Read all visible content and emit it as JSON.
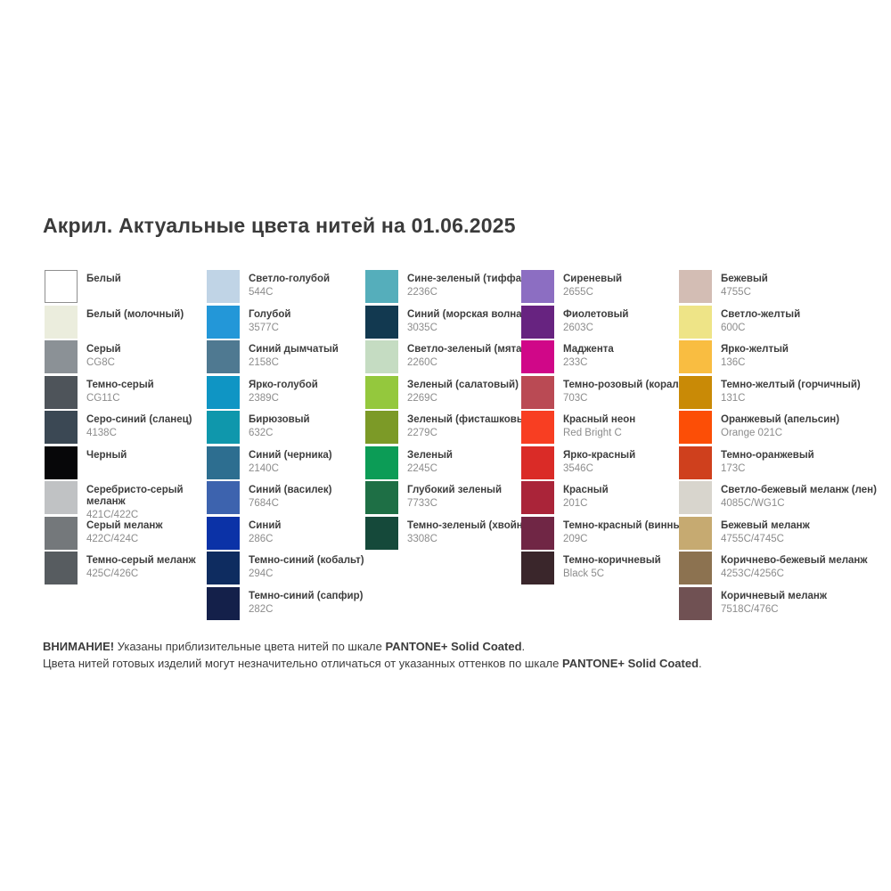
{
  "title": "Акрил. Актуальные цвета нитей на 01.06.2025",
  "columns": [
    {
      "items": [
        {
          "name": "Белый",
          "code": "",
          "color": "#ffffff",
          "border": true
        },
        {
          "name": "Белый (молочный)",
          "code": "",
          "color": "#ebeddd",
          "border": false
        },
        {
          "name": "Серый",
          "code": "CG8C",
          "color": "#8b9196",
          "border": false
        },
        {
          "name": "Темно-серый",
          "code": "CG11C",
          "color": "#4e545a",
          "border": false
        },
        {
          "name": "Серо-синий (сланец)",
          "code": "4138C",
          "color": "#3b4854",
          "border": false
        },
        {
          "name": "Черный",
          "code": "",
          "color": "#070709",
          "border": false
        },
        {
          "name": "Серебристо-серый\nмеланж",
          "code": "421C/422C",
          "color": "#c0c2c4",
          "border": false
        },
        {
          "name": "Серый меланж",
          "code": "422C/424C",
          "color": "#74787b",
          "border": false
        },
        {
          "name": "Темно-серый меланж",
          "code": "425C/426C",
          "color": "#575c60",
          "border": false
        }
      ]
    },
    {
      "items": [
        {
          "name": "Светло-голубой",
          "code": "544C",
          "color": "#c0d4e6",
          "border": false
        },
        {
          "name": "Голубой",
          "code": "3577C",
          "color": "#2397d8",
          "border": false
        },
        {
          "name": "Синий дымчатый",
          "code": "2158C",
          "color": "#4f7991",
          "border": false
        },
        {
          "name": "Ярко-голубой",
          "code": "2389C",
          "color": "#0f95c4",
          "border": false
        },
        {
          "name": "Бирюзовый",
          "code": "632C",
          "color": "#0f97ac",
          "border": false
        },
        {
          "name": "Синий (черника)",
          "code": "2140C",
          "color": "#2d6e90",
          "border": false
        },
        {
          "name": "Синий (василек)",
          "code": "7684C",
          "color": "#3d63ae",
          "border": false
        },
        {
          "name": "Синий",
          "code": "286C",
          "color": "#0b32a7",
          "border": false
        },
        {
          "name": "Темно-синий (кобальт)",
          "code": "294C",
          "color": "#0e2c60",
          "border": false
        },
        {
          "name": "Темно-синий (сапфир)",
          "code": "282C",
          "color": "#14204a",
          "border": false
        }
      ]
    },
    {
      "items": [
        {
          "name": "Сине-зеленый (тиффани)",
          "code": "2236C",
          "color": "#55aebb",
          "border": false
        },
        {
          "name": "Синий (морская волна)",
          "code": "3035C",
          "color": "#123950",
          "border": false
        },
        {
          "name": "Светло-зеленый (мята)",
          "code": "2260C",
          "color": "#c5dcc2",
          "border": false
        },
        {
          "name": "Зеленый (салатовый)",
          "code": "2269C",
          "color": "#94c83d",
          "border": false
        },
        {
          "name": "Зеленый (фисташковый)",
          "code": "2279C",
          "color": "#7c9a27",
          "border": false
        },
        {
          "name": "Зеленый",
          "code": "2245C",
          "color": "#0c9c56",
          "border": false
        },
        {
          "name": "Глубокий зеленый",
          "code": "7733C",
          "color": "#1e6f45",
          "border": false
        },
        {
          "name": "Темно-зеленый (хвойный)",
          "code": "3308C",
          "color": "#15493a",
          "border": false
        }
      ]
    },
    {
      "items": [
        {
          "name": "Сиреневый",
          "code": "2655C",
          "color": "#8c6ec2",
          "border": false
        },
        {
          "name": "Фиолетовый",
          "code": "2603C",
          "color": "#672380",
          "border": false
        },
        {
          "name": "Маджента",
          "code": "233C",
          "color": "#d00788",
          "border": false
        },
        {
          "name": "Темно-розовый (коралл)",
          "code": "703C",
          "color": "#ba4a54",
          "border": false
        },
        {
          "name": "Красный неон",
          "code": "Red Bright C",
          "color": "#f83e22",
          "border": false
        },
        {
          "name": "Ярко-красный",
          "code": "3546C",
          "color": "#da2b27",
          "border": false
        },
        {
          "name": "Красный",
          "code": "201C",
          "color": "#aa2439",
          "border": false
        },
        {
          "name": "Темно-красный (винный)",
          "code": "209C",
          "color": "#702645",
          "border": false
        },
        {
          "name": "Темно-коричневый",
          "code": "Black 5C",
          "color": "#3a262b",
          "border": false
        }
      ]
    },
    {
      "items": [
        {
          "name": "Бежевый",
          "code": "4755C",
          "color": "#d3bdb4",
          "border": false
        },
        {
          "name": "Светло-желтый",
          "code": "600C",
          "color": "#eee487",
          "border": false
        },
        {
          "name": "Ярко-желтый",
          "code": "136C",
          "color": "#f9bd41",
          "border": false
        },
        {
          "name": "Темно-желтый (горчичный)",
          "code": "131C",
          "color": "#c98a06",
          "border": false
        },
        {
          "name": "Оранжевый (апельсин)",
          "code": "Orange 021C",
          "color": "#fc4e06",
          "border": false
        },
        {
          "name": "Темно-оранжевый",
          "code": "173C",
          "color": "#cf401d",
          "border": false
        },
        {
          "name": "Светло-бежевый меланж (лен)",
          "code": "4085C/WG1C",
          "color": "#d8d5cd",
          "border": false
        },
        {
          "name": "Бежевый меланж",
          "code": "4755C/4745C",
          "color": "#c6aa71",
          "border": false
        },
        {
          "name": "Коричнево-бежевый меланж",
          "code": "4253C/4256C",
          "color": "#8c7250",
          "border": false
        },
        {
          "name": "Коричневый меланж",
          "code": "7518C/476C",
          "color": "#705153",
          "border": false
        }
      ]
    }
  ],
  "footer": {
    "line1": [
      {
        "text": "ВНИМАНИЕ!",
        "bold": true
      },
      {
        "text": " Указаны приблизительные цвета нитей по шкале ",
        "bold": false
      },
      {
        "text": "PANTONE+ Solid Coated",
        "bold": true
      },
      {
        "text": ".",
        "bold": false
      }
    ],
    "line2": [
      {
        "text": "Цвета нитей готовых изделий могут незначительно отличаться от указанных оттенков по шкале ",
        "bold": false
      },
      {
        "text": "PANTONE+ Solid Coated",
        "bold": true
      },
      {
        "text": ".",
        "bold": false
      }
    ]
  }
}
